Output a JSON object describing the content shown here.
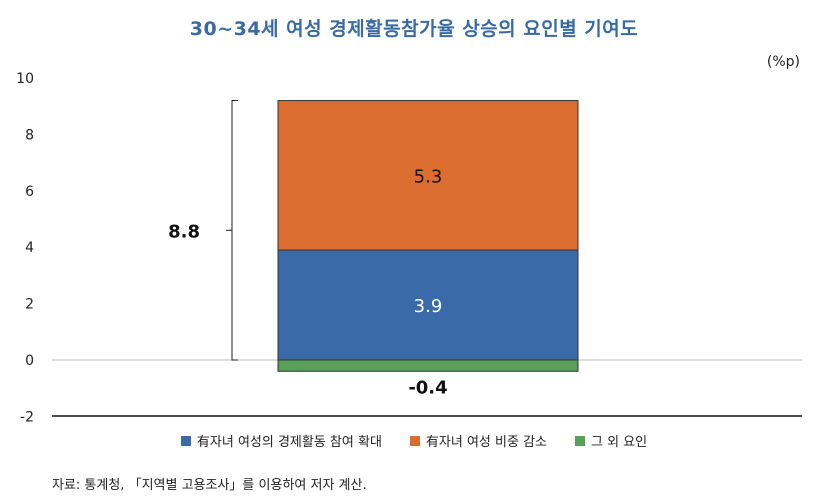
{
  "title": "30~34세 여성 경제활동참가율 상승의 요인별 기여도",
  "unit": "(%p)",
  "source": "자료: 통계청, 「지역별 고용조사」를 이용하여 저자 계산.",
  "chart_data": {
    "type": "bar",
    "stacked": true,
    "categories": [
      ""
    ],
    "ylim": [
      -2,
      10
    ],
    "yticks": [
      -2,
      0,
      2,
      4,
      6,
      8,
      10
    ],
    "grid": false,
    "legend_position": "bottom",
    "series": [
      {
        "name": "有자녀 여성의 경제활동 참여 확대",
        "values": [
          3.9
        ],
        "color": "#3b6aa8",
        "label": "3.9"
      },
      {
        "name": "有자녀 여성 비중 감소",
        "values": [
          5.3
        ],
        "color": "#dc6d30",
        "label": "5.3"
      },
      {
        "name": "그 외 요인",
        "values": [
          -0.4
        ],
        "color": "#5aa05a",
        "label": "-0.4"
      }
    ],
    "total": {
      "value": 8.8,
      "label": "8.8"
    }
  }
}
